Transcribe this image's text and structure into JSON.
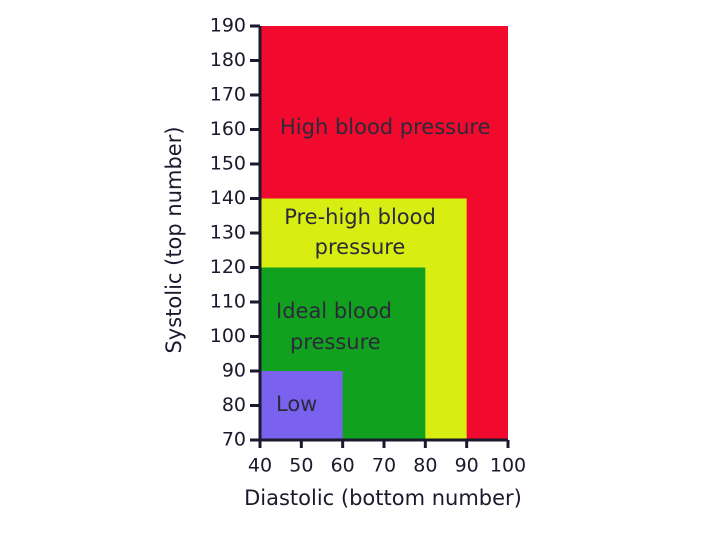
{
  "chart_data": {
    "type": "region",
    "x_label": "Diastolic (bottom number)",
    "y_label": "Systolic (top number)",
    "xlim": [
      40,
      100
    ],
    "xticks": [
      40,
      50,
      60,
      70,
      80,
      90,
      100
    ],
    "ylim": [
      70,
      190
    ],
    "yticks": [
      70,
      80,
      90,
      100,
      110,
      120,
      130,
      140,
      150,
      160,
      170,
      180,
      190
    ],
    "regions": [
      {
        "name": [
          "High blood pressure"
        ],
        "color": "#f20a2e",
        "x": [
          40,
          100
        ],
        "y": [
          70,
          190
        ]
      },
      {
        "name": [
          "Pre-high blood",
          "pressure"
        ],
        "color": "#d8ee12",
        "x": [
          40,
          90
        ],
        "y": [
          70,
          140
        ]
      },
      {
        "name": [
          "Ideal blood",
          "pressure"
        ],
        "color": "#12a11e",
        "x": [
          40,
          80
        ],
        "y": [
          70,
          120
        ]
      },
      {
        "name": [
          "Low"
        ],
        "color": "#7a62ee",
        "x": [
          40,
          60
        ],
        "y": [
          70,
          90
        ]
      }
    ]
  }
}
